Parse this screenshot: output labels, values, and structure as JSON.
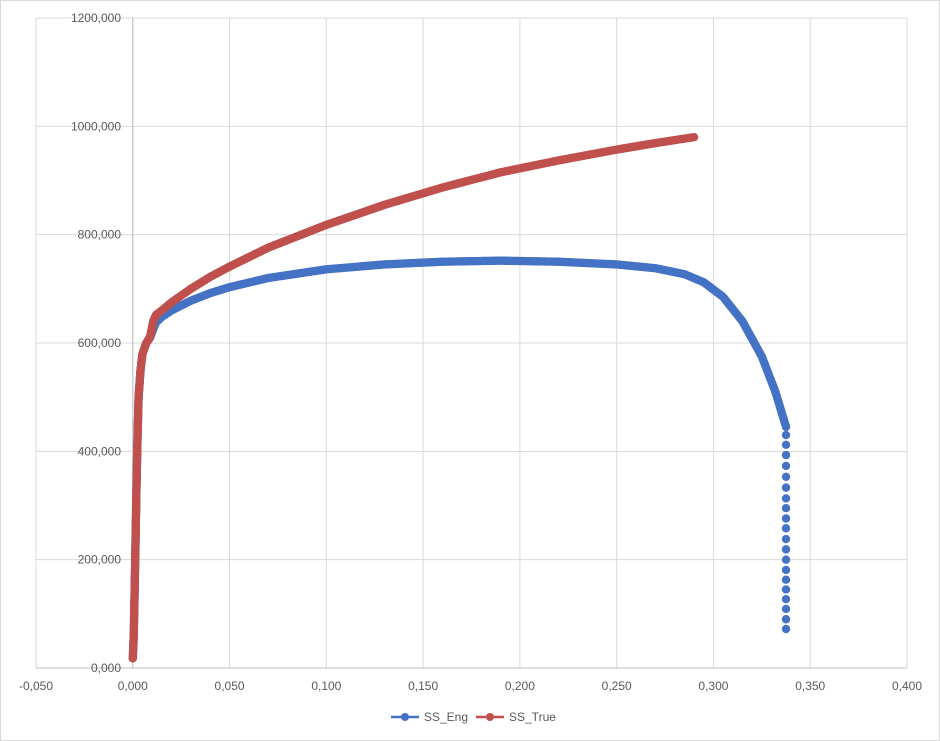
{
  "chart_data": {
    "type": "scatter",
    "title": "",
    "xlabel": "",
    "ylabel": "",
    "xlim": [
      -0.05,
      0.4
    ],
    "ylim": [
      0,
      1200000
    ],
    "x_ticks": [
      -0.05,
      0,
      0.05,
      0.1,
      0.15,
      0.2,
      0.25,
      0.3,
      0.35,
      0.4
    ],
    "x_tick_labels": [
      "-0,050",
      "0,000",
      "0,050",
      "0,100",
      "0,150",
      "0,200",
      "0,250",
      "0,300",
      "0,350",
      "0,400"
    ],
    "y_ticks": [
      0,
      200000,
      400000,
      600000,
      800000,
      1000000,
      1200000
    ],
    "y_tick_labels": [
      "0,000",
      "200,000",
      "400,000",
      "600,000",
      "800,000",
      "1000,000",
      "1200,000"
    ],
    "grid": true,
    "legend_position": "bottom",
    "series": [
      {
        "name": "SS_Eng",
        "color": "#4472c4",
        "marker": "circle",
        "points": [
          [
            0.0,
            18000
          ],
          [
            0.0005,
            60000
          ],
          [
            0.001,
            150000
          ],
          [
            0.0015,
            250000
          ],
          [
            0.002,
            350000
          ],
          [
            0.0025,
            430000
          ],
          [
            0.003,
            500000
          ],
          [
            0.004,
            550000
          ],
          [
            0.005,
            580000
          ],
          [
            0.007,
            600000
          ],
          [
            0.009,
            610000
          ],
          [
            0.0105,
            625000
          ],
          [
            0.012,
            638000
          ],
          [
            0.015,
            648000
          ],
          [
            0.02,
            660000
          ],
          [
            0.03,
            678000
          ],
          [
            0.04,
            692000
          ],
          [
            0.05,
            703000
          ],
          [
            0.07,
            720000
          ],
          [
            0.1,
            736000
          ],
          [
            0.13,
            745000
          ],
          [
            0.16,
            750000
          ],
          [
            0.19,
            752000
          ],
          [
            0.22,
            750000
          ],
          [
            0.25,
            745000
          ],
          [
            0.27,
            738000
          ],
          [
            0.285,
            727000
          ],
          [
            0.295,
            712000
          ],
          [
            0.305,
            685000
          ],
          [
            0.315,
            640000
          ],
          [
            0.325,
            575000
          ],
          [
            0.332,
            510000
          ],
          [
            0.3375,
            445000
          ],
          [
            0.3375,
            430000
          ],
          [
            0.3375,
            412000
          ],
          [
            0.3375,
            393000
          ],
          [
            0.3375,
            373000
          ],
          [
            0.3375,
            353000
          ],
          [
            0.3375,
            333000
          ],
          [
            0.3375,
            313000
          ],
          [
            0.3375,
            295000
          ],
          [
            0.3375,
            276000
          ],
          [
            0.3375,
            258000
          ],
          [
            0.3375,
            238000
          ],
          [
            0.3375,
            219000
          ],
          [
            0.3375,
            200000
          ],
          [
            0.3375,
            181000
          ],
          [
            0.3375,
            163000
          ],
          [
            0.3375,
            145000
          ],
          [
            0.3375,
            127000
          ],
          [
            0.3375,
            109000
          ],
          [
            0.3375,
            90000
          ],
          [
            0.3375,
            72000
          ]
        ]
      },
      {
        "name": "SS_True",
        "color": "#c0504d",
        "marker": "circle",
        "points": [
          [
            0.0,
            18000
          ],
          [
            0.0005,
            60000
          ],
          [
            0.001,
            150000
          ],
          [
            0.0015,
            250000
          ],
          [
            0.002,
            350000
          ],
          [
            0.0025,
            430000
          ],
          [
            0.003,
            500000
          ],
          [
            0.004,
            550000
          ],
          [
            0.005,
            580000
          ],
          [
            0.007,
            600000
          ],
          [
            0.009,
            612000
          ],
          [
            0.0105,
            640000
          ],
          [
            0.012,
            652000
          ],
          [
            0.015,
            660000
          ],
          [
            0.02,
            675000
          ],
          [
            0.03,
            700000
          ],
          [
            0.04,
            722000
          ],
          [
            0.05,
            741000
          ],
          [
            0.07,
            776000
          ],
          [
            0.1,
            818000
          ],
          [
            0.13,
            855000
          ],
          [
            0.16,
            887000
          ],
          [
            0.19,
            915000
          ],
          [
            0.22,
            937000
          ],
          [
            0.25,
            957000
          ],
          [
            0.27,
            969000
          ],
          [
            0.29,
            980000
          ]
        ]
      }
    ]
  }
}
